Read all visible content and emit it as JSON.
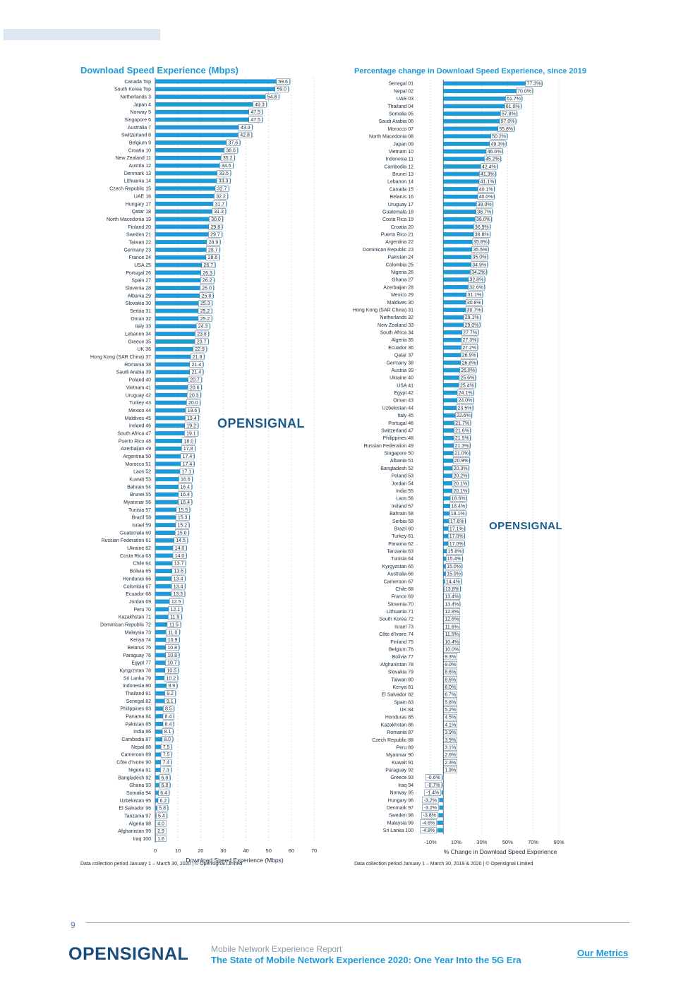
{
  "watermark": "OPENSIGNAL",
  "footer": {
    "page_number": "9",
    "logo": "OPENSIGNAL",
    "subtitle": "Mobile Network Experience Report",
    "title": "The State of Mobile Network Experience 2020: One Year Into the 5G Era",
    "link": "Our Metrics"
  },
  "colors": {
    "bar": "#1f9ad6",
    "title": "#1f9ad6",
    "axis": "#1a2b3c"
  },
  "chart_data": [
    {
      "type": "bar",
      "orientation": "horizontal",
      "title": "Download Speed Experience (Mbps)",
      "xlabel": "Download Speed Experience (Mbps)",
      "xlim": [
        0,
        70
      ],
      "xticks": [
        0,
        10,
        20,
        30,
        40,
        50,
        60,
        70
      ],
      "grid": true,
      "note": "Data collection period January 1 – March 30, 2020 | © Opensignal Limited",
      "categories": [
        "Canada Top",
        "South Korea Top",
        "Netherlands 3",
        "Japan 4",
        "Norway 5",
        "Singapore 6",
        "Australia 7",
        "Switzerland 8",
        "Belgium 9",
        "Croatia 10",
        "New Zealand 11",
        "Austria 12",
        "Denmark 13",
        "Lithuania 14",
        "Czech Republic 15",
        "UAE 16",
        "Hungary 17",
        "Qatar 18",
        "North Macedonia 19",
        "Finland 20",
        "Sweden 21",
        "Taiwan 22",
        "Germany 23",
        "France 24",
        "USA 25",
        "Portugal 26",
        "Spain 27",
        "Slovenia 28",
        "Albania 29",
        "Slovakia 30",
        "Serbia 31",
        "Oman 32",
        "Italy 33",
        "Lebanon 34",
        "Greece 35",
        "UK 36",
        "Hong Kong (SAR China) 37",
        "Romania 38",
        "Saudi Arabia 39",
        "Poland 40",
        "Vietnam 41",
        "Uruguay 42",
        "Turkey 43",
        "Mexico 44",
        "Maldives 45",
        "Ireland 46",
        "South Africa 47",
        "Puerto Rico 48",
        "Azerbaijan 49",
        "Argentina 50",
        "Morocco 51",
        "Laos 52",
        "Kuwait 53",
        "Bahrain 54",
        "Brunei 55",
        "Myanmar 56",
        "Tunisia 57",
        "Brazil 58",
        "Israel 59",
        "Guatemala 60",
        "Russian Federation 61",
        "Ukraine 62",
        "Costa Rica 63",
        "Chile 64",
        "Bolivia 65",
        "Honduras 66",
        "Colombia 67",
        "Ecuador 68",
        "Jordan 69",
        "Peru 70",
        "Kazakhstan 71",
        "Dominican Republic 72",
        "Malaysia 73",
        "Kenya 74",
        "Belarus 75",
        "Paraguay 76",
        "Egypt 77",
        "Kyrgyzstan 78",
        "Sri Lanka 79",
        "Indonesia 80",
        "Thailand 81",
        "Senegal 82",
        "Philippines 83",
        "Panama 84",
        "Pakistan 85",
        "India 86",
        "Cambodia 87",
        "Nepal 88",
        "Cameroon 89",
        "Côte d'Ivoire 90",
        "Nigeria 91",
        "Bangladesh 92",
        "Ghana 93",
        "Somalia 94",
        "Uzbekistan 95",
        "El Salvador 96",
        "Tanzania 97",
        "Algeria 98",
        "Afghanistan 99",
        "Iraq 100"
      ],
      "values": [
        59.6,
        59.0,
        54.8,
        49.3,
        47.5,
        47.5,
        43.0,
        42.8,
        37.6,
        36.6,
        35.2,
        34.6,
        33.5,
        33.3,
        32.7,
        32.2,
        31.7,
        31.3,
        30.0,
        29.8,
        29.7,
        28.9,
        28.7,
        28.6,
        26.7,
        26.3,
        26.2,
        26.0,
        25.8,
        25.3,
        25.2,
        25.2,
        24.3,
        23.8,
        23.7,
        22.9,
        21.8,
        21.4,
        21.4,
        20.7,
        20.6,
        20.3,
        20.0,
        19.6,
        19.4,
        19.2,
        19.1,
        18.0,
        17.8,
        17.4,
        17.4,
        17.1,
        16.6,
        16.4,
        16.4,
        16.4,
        15.5,
        15.3,
        15.2,
        15.0,
        14.5,
        14.0,
        14.0,
        13.7,
        13.6,
        13.4,
        13.4,
        13.3,
        12.5,
        12.1,
        11.9,
        11.5,
        11.0,
        10.9,
        10.8,
        10.8,
        10.7,
        10.5,
        10.2,
        9.9,
        9.2,
        9.1,
        8.5,
        8.4,
        8.4,
        8.1,
        8.0,
        7.5,
        7.5,
        7.4,
        7.3,
        6.8,
        6.8,
        6.4,
        6.2,
        5.8,
        5.4,
        4.0,
        2.9,
        1.6
      ],
      "value_labels": [
        "59.6",
        "59.0",
        "54.8",
        "49.3",
        "47.5",
        "47.5",
        "43.0",
        "42.8",
        "37.6",
        "36.6",
        "35.2",
        "34.6",
        "33.5",
        "33.3",
        "32.7",
        "32.2",
        "31.7",
        "31.3",
        "30.0",
        "29.8",
        "29.7",
        "28.9",
        "28.7",
        "28.6",
        "26.7",
        "26.3",
        "26.2",
        "26.0",
        "25.8",
        "25.3",
        "25.2",
        "25.2",
        "24.3",
        "23.8",
        "23.7",
        "22.9",
        "21.8",
        "21.4",
        "21.4",
        "20.7",
        "20.6",
        "20.3",
        "20.0",
        "19.6",
        "19.4",
        "19.2",
        "19.1",
        "18.0",
        "17.8",
        "17.4",
        "17.4",
        "17.1",
        "16.6",
        "16.4",
        "16.4",
        "16.4",
        "15.5",
        "15.3",
        "15.2",
        "15.0",
        "14.5",
        "14.0",
        "14.0",
        "13.7",
        "13.6",
        "13.4",
        "13.4",
        "13.3",
        "12.5",
        "12.1",
        "11.9",
        "11.5",
        "11.0",
        "10.9",
        "10.8",
        "10.8",
        "10.7",
        "10.5",
        "10.2",
        "9.9",
        "9.2",
        "9.1",
        "8.5",
        "8.4",
        "8.4",
        "8.1",
        "8.0",
        "7.5",
        "7.5",
        "7.4",
        "7.3",
        "6.8",
        "6.8",
        "6.4",
        "6.2",
        "5.8",
        "5.4",
        "4.0",
        "2.9",
        "1.6"
      ]
    },
    {
      "type": "bar",
      "orientation": "horizontal",
      "title": "Percentage change in Download Speed Experience, since 2019",
      "xlabel": "% Change in Download Speed Experience",
      "xlim": [
        -10,
        90
      ],
      "xticks": [
        -10,
        10,
        30,
        50,
        70,
        90
      ],
      "xtick_labels": [
        "-10%",
        "10%",
        "30%",
        "50%",
        "70%",
        "90%"
      ],
      "grid": true,
      "note": "Data collection period January 1 – March 30, 2019 & 2020 | © Opensignal Limited",
      "categories": [
        "Senegal 01",
        "Nepal 02",
        "UAE 03",
        "Thailand 04",
        "Somalia 05",
        "Saudi Arabia 06",
        "Morocco 07",
        "North Macedonia 08",
        "Japan 09",
        "Vietnam 10",
        "Indonesia 11",
        "Cambodia 12",
        "Brunei 13",
        "Lebanon 14",
        "Canada 15",
        "Belarus 16",
        "Uruguay 17",
        "Guatemala 18",
        "Costa Rica 19",
        "Croatia 20",
        "Puerto Rico 21",
        "Argentina 22",
        "Dominican Republic 23",
        "Pakistan 24",
        "Colombia 25",
        "Nigeria 26",
        "Ghana 27",
        "Azerbaijan 28",
        "Mexico 29",
        "Maldives 30",
        "Hong Kong (SAR China) 31",
        "Netherlands 32",
        "New Zealand 33",
        "South Africa 34",
        "Algeria 35",
        "Ecuador 36",
        "Qatar 37",
        "Germany 38",
        "Austria 39",
        "Ukraine 40",
        "USA 41",
        "Egypt 42",
        "Oman 43",
        "Uzbekistan 44",
        "Italy 45",
        "Portugal 46",
        "Switzerland 47",
        "Philippines 48",
        "Russian Federation 49",
        "Singapore 50",
        "Albania 51",
        "Bangladesh 52",
        "Poland 53",
        "Jordan 54",
        "India 55",
        "Laos 56",
        "Ireland 57",
        "Bahrain 58",
        "Serbia 59",
        "Brazil 60",
        "Turkey 61",
        "Panama 62",
        "Tanzania 63",
        "Tunisia 64",
        "Kyrgyzstan 65",
        "Australia 66",
        "Cameroon 67",
        "Chile 68",
        "France 69",
        "Slovenia 70",
        "Lithuania 71",
        "South Korea 72",
        "Israel 73",
        "Côte d'Ivoire 74",
        "Finland 75",
        "Belgium 76",
        "Bolivia 77",
        "Afghanistan 78",
        "Slovakia 79",
        "Taiwan 80",
        "Kenya 81",
        "El Salvador 82",
        "Spain 83",
        "UK 84",
        "Honduras 85",
        "Kazakhstan 86",
        "Romania 87",
        "Czech Republic 88",
        "Peru 89",
        "Myanmar 90",
        "Kuwait 91",
        "Paraguay 92",
        "Greece 93",
        "Iraq 94",
        "Norway 95",
        "Hungary 96",
        "Denmark 97",
        "Sweden 98",
        "Malaysia 99",
        "Sri Lanka 100"
      ],
      "values": [
        77.3,
        70.0,
        61.7,
        61.0,
        57.8,
        57.0,
        55.8,
        50.2,
        49.3,
        46.6,
        45.2,
        42.4,
        41.3,
        41.1,
        40.1,
        40.0,
        39.0,
        38.7,
        38.0,
        36.9,
        36.8,
        35.8,
        35.5,
        35.0,
        34.9,
        34.2,
        32.8,
        32.6,
        31.1,
        30.8,
        30.7,
        29.1,
        29.0,
        27.7,
        27.3,
        27.2,
        26.9,
        26.8,
        26.0,
        25.6,
        25.4,
        24.1,
        24.0,
        23.5,
        22.6,
        21.7,
        21.6,
        21.5,
        21.3,
        21.0,
        20.9,
        20.3,
        20.2,
        20.1,
        20.1,
        18.6,
        18.4,
        18.1,
        17.6,
        17.1,
        17.0,
        17.0,
        15.8,
        15.4,
        15.0,
        15.0,
        14.4,
        13.8,
        13.4,
        13.4,
        12.8,
        12.6,
        11.6,
        11.5,
        10.4,
        10.0,
        9.3,
        9.0,
        8.6,
        8.6,
        8.0,
        6.7,
        5.8,
        5.2,
        4.5,
        4.1,
        3.9,
        3.9,
        3.1,
        2.6,
        2.3,
        1.9,
        -0.6,
        -0.7,
        -1.4,
        -3.2,
        -3.2,
        -3.8,
        -4.8,
        -4.8
      ],
      "value_labels": [
        "77.3%",
        "70.0%",
        "61.7%",
        "61.0%",
        "57.8%",
        "57.0%",
        "55.8%",
        "50.2%",
        "49.3%",
        "46.6%",
        "45.2%",
        "42.4%",
        "41.3%",
        "41.1%",
        "40.1%",
        "40.0%",
        "39.0%",
        "38.7%",
        "38.0%",
        "36.9%",
        "36.8%",
        "35.8%",
        "35.5%",
        "35.0%",
        "34.9%",
        "34.2%",
        "32.8%",
        "32.6%",
        "31.1%",
        "30.8%",
        "30.7%",
        "29.1%",
        "29.0%",
        "27.7%",
        "27.3%",
        "27.2%",
        "26.9%",
        "26.8%",
        "26.0%",
        "25.6%",
        "25.4%",
        "24.1%",
        "24.0%",
        "23.5%",
        "22.6%",
        "21.7%",
        "21.6%",
        "21.5%",
        "21.3%",
        "21.0%",
        "20.9%",
        "20.3%",
        "20.2%",
        "20.1%",
        "20.1%",
        "18.6%",
        "18.4%",
        "18.1%",
        "17.6%",
        "17.1%",
        "17.0%",
        "17.0%",
        "15.8%",
        "15.4%",
        "15.0%",
        "15.0%",
        "14.4%",
        "13.8%",
        "13.4%",
        "13.4%",
        "12.8%",
        "12.6%",
        "11.6%",
        "11.5%",
        "10.4%",
        "10.0%",
        "9.3%",
        "9.0%",
        "8.6%",
        "8.6%",
        "8.0%",
        "6.7%",
        "5.8%",
        "5.2%",
        "4.5%",
        "4.1%",
        "3.9%",
        "3.9%",
        "3.1%",
        "2.6%",
        "2.3%",
        "1.9%",
        "-0.6%",
        "-0.7%",
        "-1.4%",
        "-3.2%",
        "-3.2%",
        "-3.8%",
        "-4.8%",
        "-4.8%"
      ]
    }
  ]
}
